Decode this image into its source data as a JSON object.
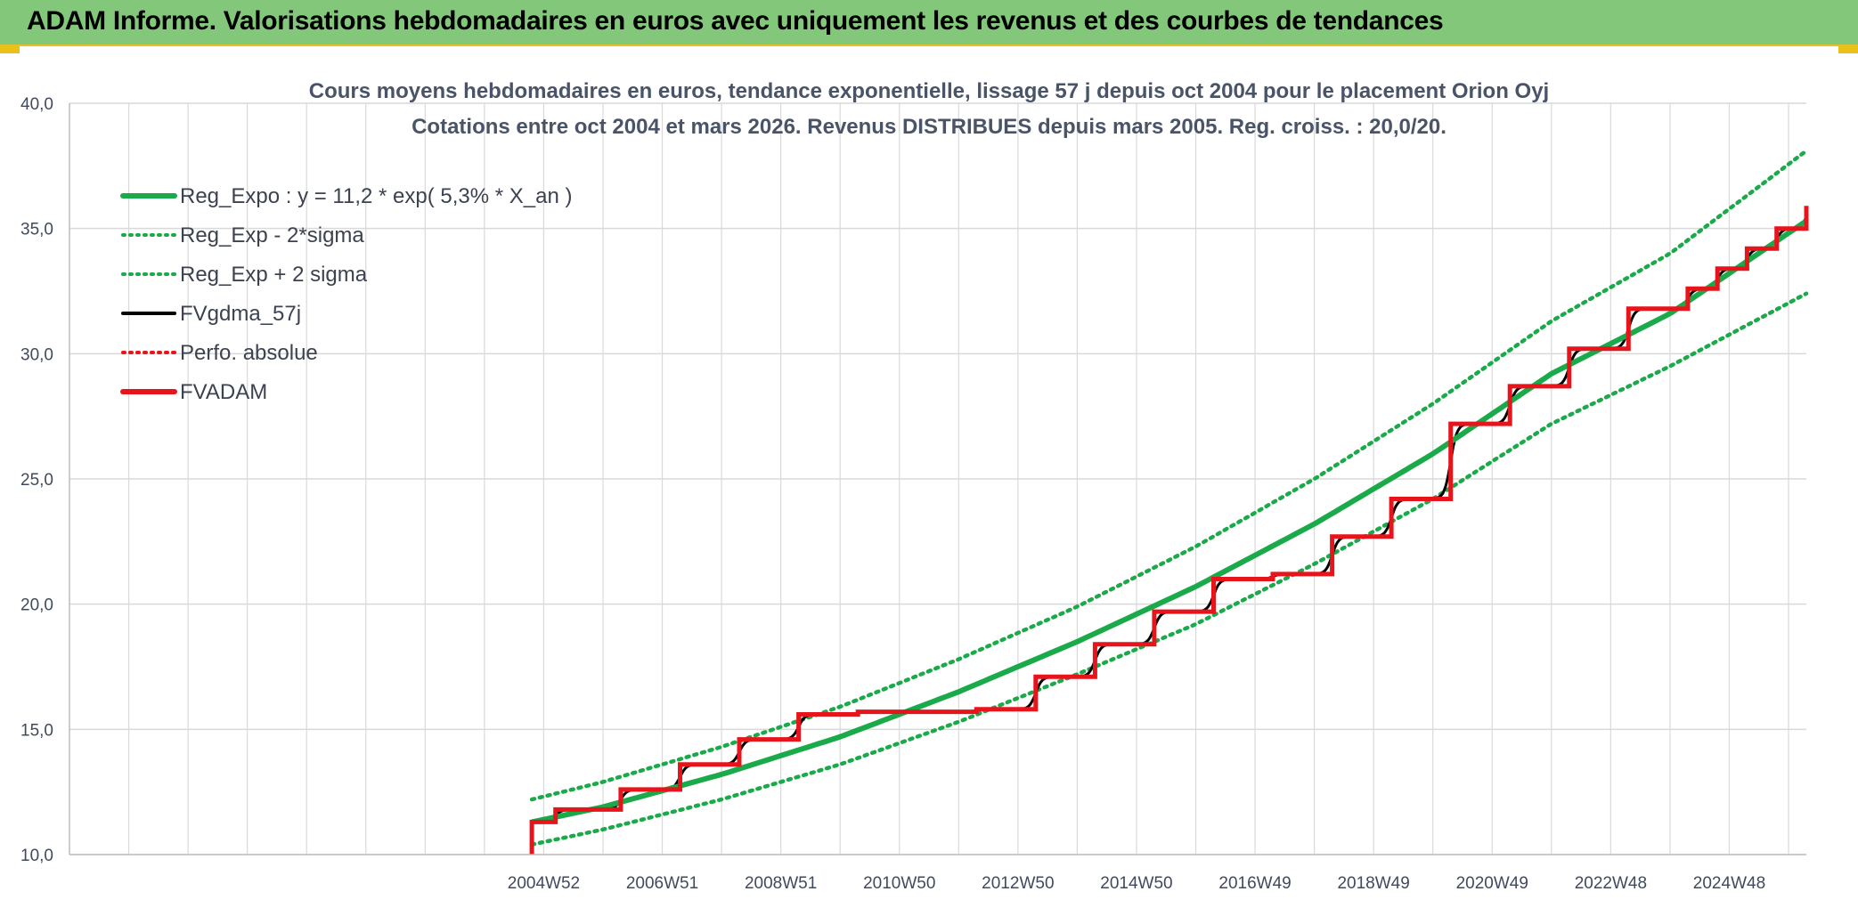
{
  "header": {
    "title": "ADAM Informe. Valorisations hebdomadaires en euros avec uniquement les revenus et des courbes de tendances"
  },
  "colors": {
    "header_bg": "#82c77a",
    "accent_gold": "#e8c21a",
    "trend_green": "#1aaa4a",
    "price_red": "#e8141c",
    "smooth_black": "#000000",
    "grid": "#d9d9d9"
  },
  "chart_data": {
    "type": "line",
    "title": "Cours moyens hebdomadaires en euros, tendance exponentielle, lissage 57 j depuis oct 2004 pour le placement Orion Oyj",
    "subtitle": "Cotations entre oct 2004 et mars 2026. Revenus DISTRIBUES depuis mars 2005. Reg. croiss. : 20,0/20.",
    "xlabel": "",
    "ylabel": "",
    "xlim": [
      1997.0,
      2026.3
    ],
    "ylim": [
      10,
      40
    ],
    "ytick_values": [
      10,
      15,
      20,
      25,
      30,
      35,
      40
    ],
    "ytick_labels": [
      "10,0",
      "15,0",
      "20,0",
      "25,0",
      "30,0",
      "35,0",
      "40,0"
    ],
    "xtick_values": [
      2005.0,
      2007.0,
      2009.0,
      2011.0,
      2013.0,
      2015.0,
      2017.0,
      2019.0,
      2021.0,
      2023.0,
      2025.0
    ],
    "xtick_labels": [
      "2004W52",
      "2006W51",
      "2008W51",
      "2010W50",
      "2012W50",
      "2014W50",
      "2016W49",
      "2018W49",
      "2020W49",
      "2022W48",
      "2024W48"
    ],
    "grid": true,
    "legend_position": "top-left",
    "legend": [
      {
        "label": "Reg_Expo : y = 11,2 * exp( 5,3% *  X_an )",
        "color": "#1aaa4a",
        "style": "solid-thick"
      },
      {
        "label": "Reg_Exp - 2*sigma",
        "color": "#1aaa4a",
        "style": "dotted"
      },
      {
        "label": "Reg_Exp + 2 sigma",
        "color": "#1aaa4a",
        "style": "dotted"
      },
      {
        "label": "FVgdma_57j",
        "color": "#000000",
        "style": "solid"
      },
      {
        "label": "Perfo. absolue",
        "color": "#e8141c",
        "style": "dotted"
      },
      {
        "label": "FVADAM",
        "color": "#e8141c",
        "style": "solid-thick"
      }
    ],
    "series": [
      {
        "name": "Reg_Expo : y = 11,2 * exp( 5,3% *  X_an )",
        "x": [
          2004.8,
          2006.0,
          2008.0,
          2010.0,
          2012.0,
          2014.0,
          2016.0,
          2018.0,
          2020.0,
          2022.0,
          2024.0,
          2026.3
        ],
        "values": [
          11.3,
          11.9,
          13.2,
          14.7,
          16.5,
          18.5,
          20.7,
          23.2,
          26.0,
          29.2,
          31.6,
          35.3
        ]
      },
      {
        "name": "Reg_Exp - 2*sigma",
        "x": [
          2004.8,
          2006.0,
          2008.0,
          2010.0,
          2012.0,
          2014.0,
          2016.0,
          2018.0,
          2020.0,
          2022.0,
          2024.0,
          2026.3
        ],
        "values": [
          10.4,
          11.0,
          12.2,
          13.6,
          15.3,
          17.2,
          19.2,
          21.6,
          24.2,
          27.2,
          29.5,
          32.4
        ]
      },
      {
        "name": "Reg_Exp + 2 sigma",
        "x": [
          2004.8,
          2006.0,
          2008.0,
          2010.0,
          2012.0,
          2014.0,
          2016.0,
          2018.0,
          2020.0,
          2022.0,
          2024.0,
          2026.3
        ],
        "values": [
          12.2,
          12.9,
          14.3,
          15.9,
          17.8,
          19.9,
          22.3,
          25.0,
          28.0,
          31.3,
          34.0,
          38.1
        ]
      },
      {
        "name": "FVADAM",
        "steps": [
          {
            "x": 2004.8,
            "v": 11.3
          },
          {
            "x": 2005.2,
            "v": 11.8
          },
          {
            "x": 2006.3,
            "v": 12.6
          },
          {
            "x": 2007.3,
            "v": 13.6
          },
          {
            "x": 2008.3,
            "v": 14.6
          },
          {
            "x": 2009.3,
            "v": 15.6
          },
          {
            "x": 2010.3,
            "v": 15.7
          },
          {
            "x": 2012.3,
            "v": 15.8
          },
          {
            "x": 2013.3,
            "v": 17.1
          },
          {
            "x": 2014.3,
            "v": 18.4
          },
          {
            "x": 2015.3,
            "v": 19.7
          },
          {
            "x": 2016.3,
            "v": 21.0
          },
          {
            "x": 2017.3,
            "v": 21.2
          },
          {
            "x": 2018.3,
            "v": 22.7
          },
          {
            "x": 2019.3,
            "v": 24.2
          },
          {
            "x": 2020.3,
            "v": 27.2
          },
          {
            "x": 2021.3,
            "v": 28.7
          },
          {
            "x": 2022.3,
            "v": 30.2
          },
          {
            "x": 2023.3,
            "v": 31.8
          },
          {
            "x": 2024.3,
            "v": 32.6
          },
          {
            "x": 2024.8,
            "v": 33.4
          },
          {
            "x": 2025.3,
            "v": 34.2
          },
          {
            "x": 2025.8,
            "v": 35.0
          },
          {
            "x": 2026.3,
            "v": 35.9
          }
        ],
        "start_value": 10.0
      },
      {
        "name": "FVgdma_57j",
        "smoothing_window_years": 0.16
      }
    ]
  }
}
